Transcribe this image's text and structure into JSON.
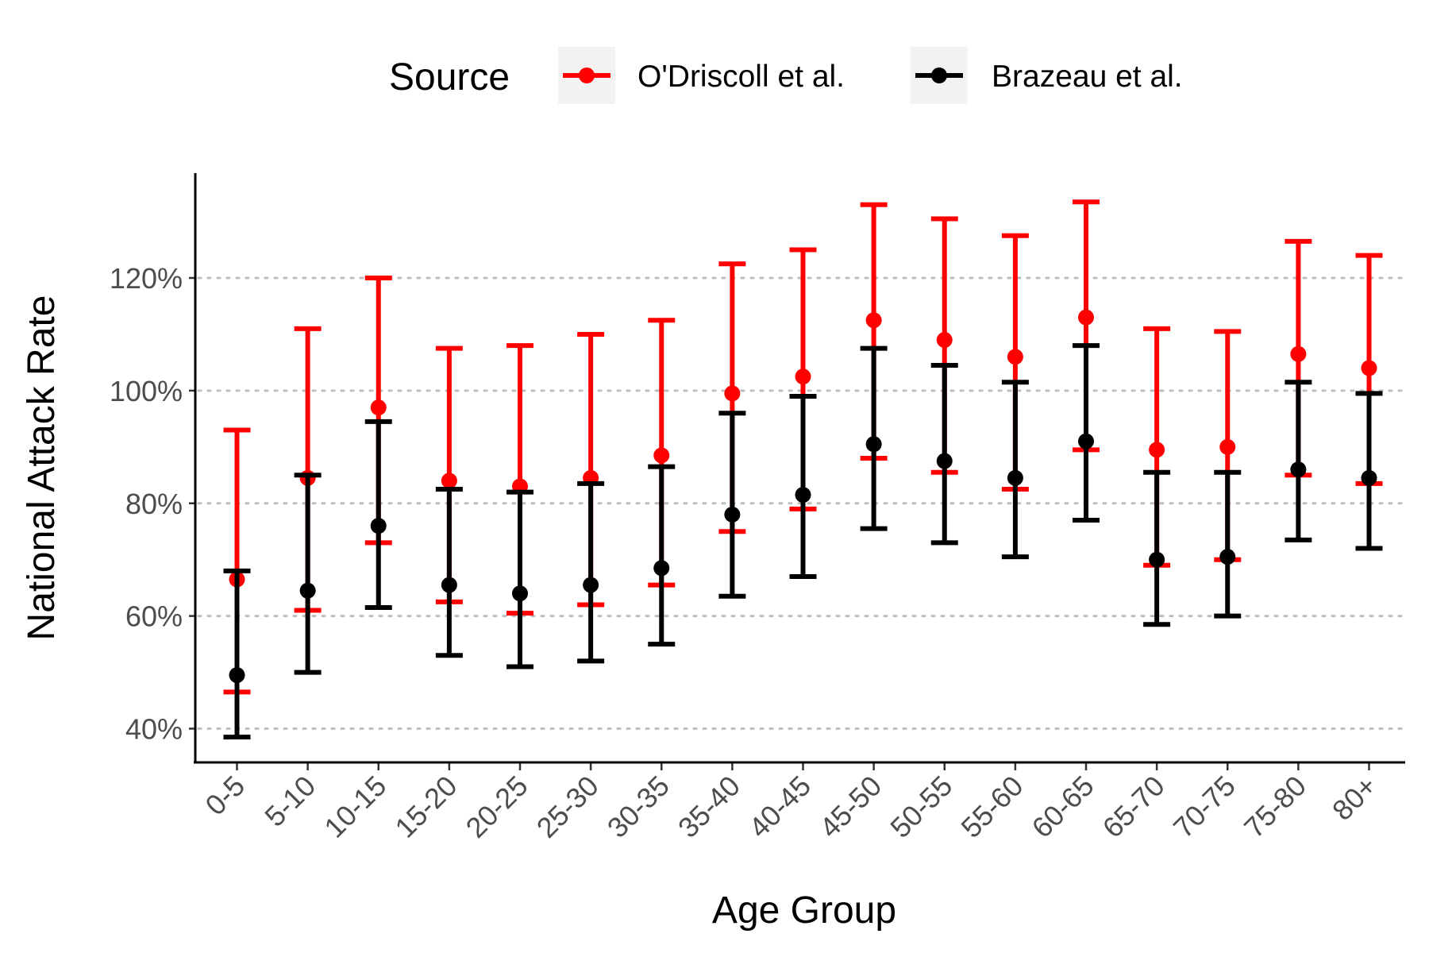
{
  "chart_data": {
    "type": "errorbar",
    "xlabel": "Age Group",
    "ylabel": "National Attack Rate",
    "y_tick_labels": [
      "40%",
      "60%",
      "80%",
      "100%",
      "120%"
    ],
    "y_ticks": [
      40,
      60,
      80,
      100,
      120
    ],
    "ylim": [
      34,
      138
    ],
    "grid": "horizontal dotted",
    "legend": {
      "title": "Source",
      "placement": "top"
    },
    "categories": [
      "0-5",
      "5-10",
      "10-15",
      "15-20",
      "20-25",
      "25-30",
      "30-35",
      "35-40",
      "40-45",
      "45-50",
      "50-55",
      "55-60",
      "60-65",
      "65-70",
      "70-75",
      "75-80",
      "80+"
    ],
    "series": [
      {
        "name": "O'Driscoll et al.",
        "color": "#ff0000",
        "values": [
          66.5,
          84.5,
          97,
          84,
          83,
          84.5,
          88.5,
          99.5,
          102.5,
          112.5,
          109,
          106,
          113,
          89.5,
          90,
          106.5,
          104
        ],
        "lower": [
          46.5,
          61,
          73,
          62.5,
          60.5,
          62,
          65.5,
          75,
          79,
          88,
          85.5,
          82.5,
          89.5,
          69,
          70,
          85,
          83.5
        ],
        "upper": [
          93,
          111,
          120,
          107.5,
          108,
          110,
          112.5,
          122.5,
          125,
          133,
          130.5,
          127.5,
          133.5,
          111,
          110.5,
          126.5,
          124
        ]
      },
      {
        "name": "Brazeau et al.",
        "color": "#000000",
        "values": [
          49.5,
          64.5,
          76,
          65.5,
          64,
          65.5,
          68.5,
          78,
          81.5,
          90.5,
          87.5,
          84.5,
          91,
          70,
          70.5,
          86,
          84.5
        ],
        "lower": [
          38.5,
          50,
          61.5,
          53,
          51,
          52,
          55,
          63.5,
          67,
          75.5,
          73,
          70.5,
          77,
          58.5,
          60,
          73.5,
          72
        ],
        "upper": [
          68,
          85,
          94.5,
          82.5,
          82,
          83.5,
          86.5,
          96,
          99,
          107.5,
          104.5,
          101.5,
          108,
          85.5,
          85.5,
          101.5,
          99.5
        ]
      }
    ]
  }
}
